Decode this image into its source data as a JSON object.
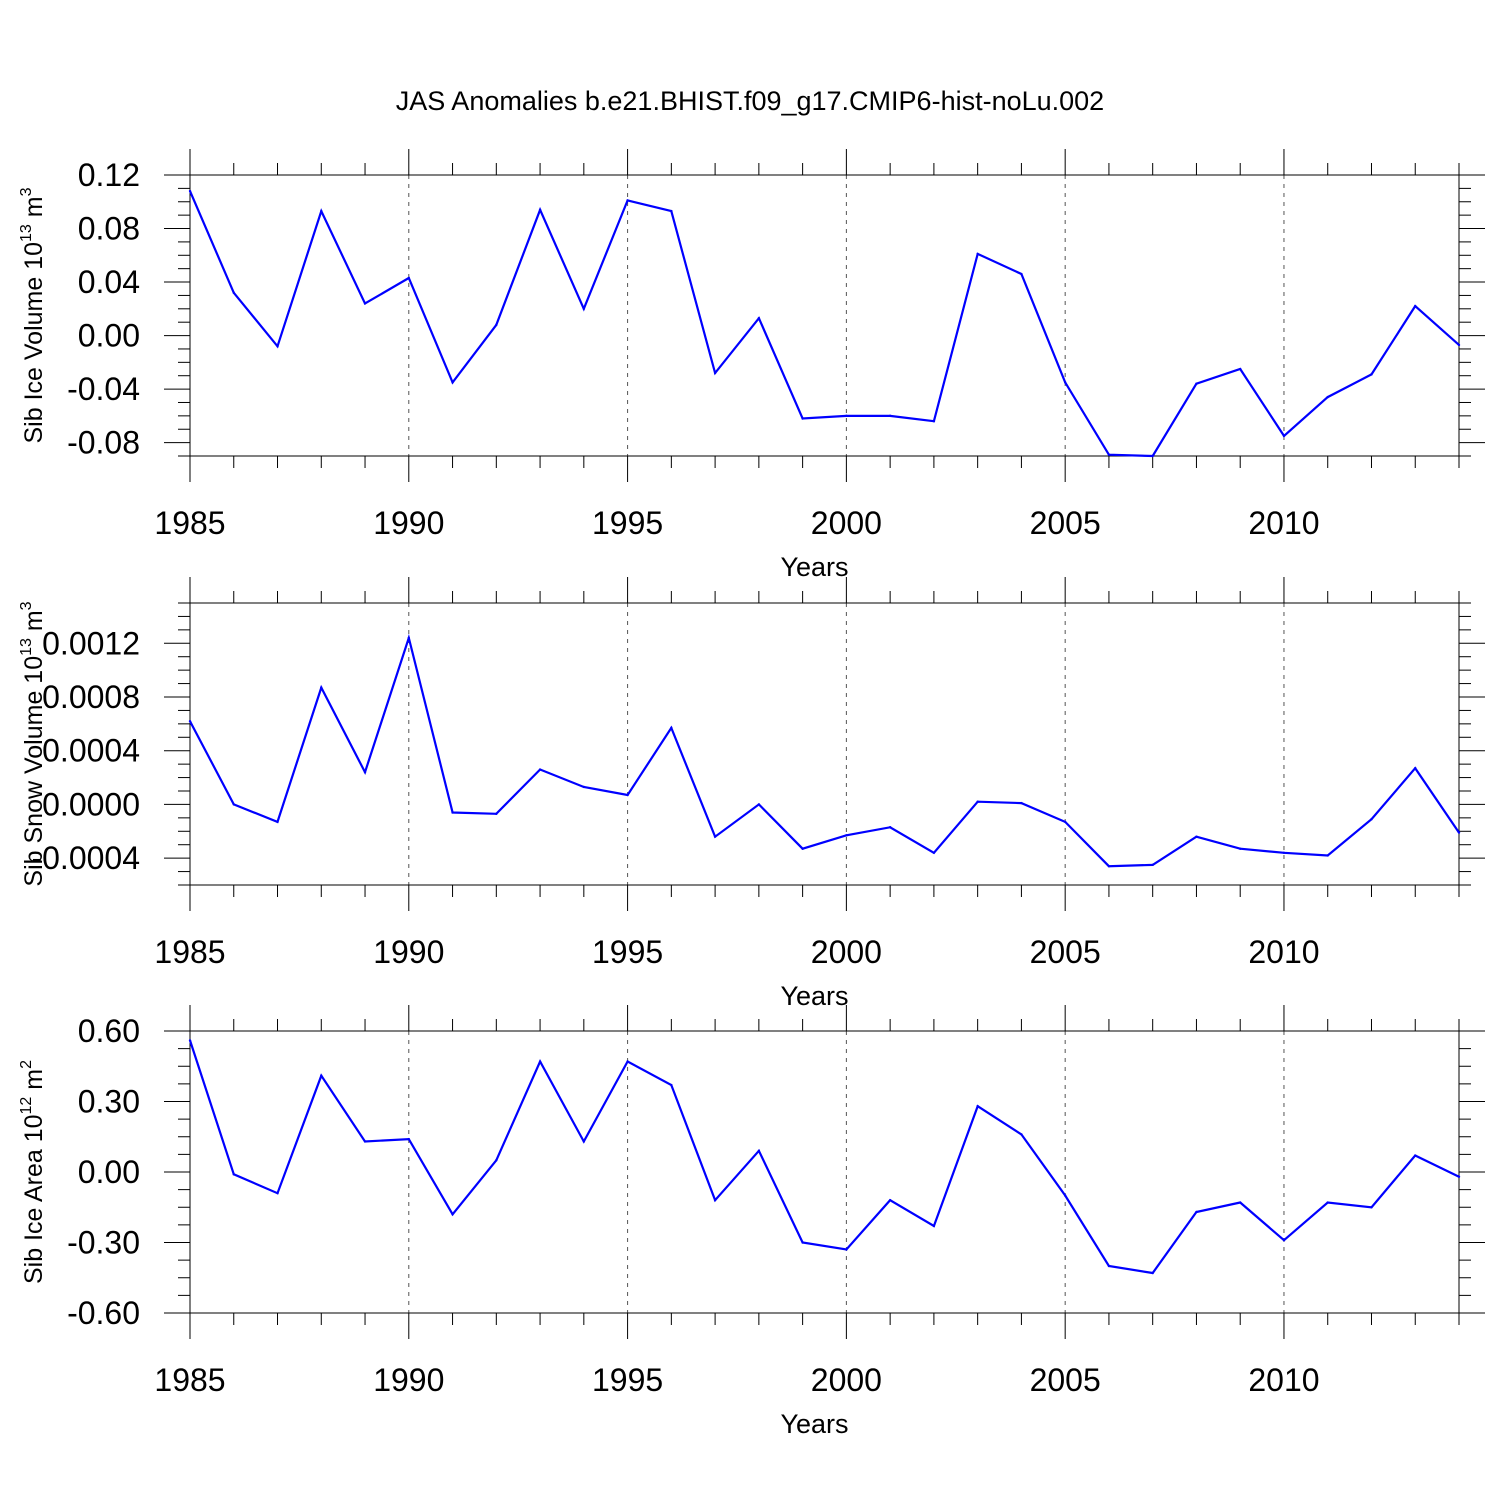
{
  "chart_data": [
    {
      "type": "line",
      "title": "JAS Anomalies b.e21.BHIST.f09_g17.CMIP6-hist-noLu.002",
      "xlabel": "Years",
      "ylabel": {
        "prefix": "Sib Ice Volume 10",
        "exp": "13",
        "unit": " m",
        "unit_exp": "3"
      },
      "xlim": [
        1985,
        2014
      ],
      "ylim": [
        -0.09,
        0.12
      ],
      "x_ticks": [
        1985,
        1990,
        1995,
        2000,
        2005,
        2010
      ],
      "x_tick_labels": [
        "1985",
        "1990",
        "1995",
        "2000",
        "2005",
        "2010"
      ],
      "y_ticks": [
        0.12,
        0.08,
        0.04,
        0.0,
        -0.04,
        -0.08
      ],
      "y_tick_labels": [
        "0.12",
        "0.08",
        "0.04",
        "0.00",
        "-0.04",
        "-0.08"
      ],
      "x_gridlines": [
        1990,
        1995,
        2000,
        2005,
        2010
      ],
      "line_color": "#0000ff",
      "x": [
        1985,
        1986,
        1987,
        1988,
        1989,
        1990,
        1991,
        1992,
        1993,
        1994,
        1995,
        1996,
        1997,
        1998,
        1999,
        2000,
        2001,
        2002,
        2003,
        2004,
        2005,
        2006,
        2007,
        2008,
        2009,
        2010,
        2011,
        2012,
        2013,
        2014
      ],
      "values": [
        0.108,
        0.032,
        -0.008,
        0.093,
        0.024,
        0.043,
        -0.035,
        0.008,
        0.094,
        0.02,
        0.101,
        0.093,
        -0.028,
        0.013,
        -0.062,
        -0.06,
        -0.06,
        -0.064,
        0.061,
        0.046,
        -0.035,
        -0.089,
        -0.09,
        -0.036,
        -0.025,
        -0.075,
        -0.046,
        -0.029,
        0.022,
        -0.007
      ]
    },
    {
      "type": "line",
      "title": "",
      "xlabel": "Years",
      "ylabel": {
        "prefix": "Sib Snow Volume 10",
        "exp": "13",
        "unit": " m",
        "unit_exp": "3"
      },
      "xlim": [
        1985,
        2014
      ],
      "ylim": [
        -0.0006,
        0.0015
      ],
      "x_ticks": [
        1985,
        1990,
        1995,
        2000,
        2005,
        2010
      ],
      "x_tick_labels": [
        "1985",
        "1990",
        "1995",
        "2000",
        "2005",
        "2010"
      ],
      "y_ticks": [
        0.0012,
        0.0008,
        0.0004,
        0.0,
        -0.0004
      ],
      "y_tick_labels": [
        "0.0012",
        "0.0008",
        "0.0004",
        "0.0000",
        "-0.0004"
      ],
      "x_gridlines": [
        1990,
        1995,
        2000,
        2005,
        2010
      ],
      "line_color": "#0000ff",
      "x": [
        1985,
        1986,
        1987,
        1988,
        1989,
        1990,
        1991,
        1992,
        1993,
        1994,
        1995,
        1996,
        1997,
        1998,
        1999,
        2000,
        2001,
        2002,
        2003,
        2004,
        2005,
        2006,
        2007,
        2008,
        2009,
        2010,
        2011,
        2012,
        2013,
        2014
      ],
      "values": [
        0.00062,
        0.0,
        -0.00013,
        0.00087,
        0.00024,
        0.00124,
        -6e-05,
        -7e-05,
        0.00026,
        0.00013,
        7e-05,
        0.00057,
        -0.00024,
        0.0,
        -0.00033,
        -0.00023,
        -0.00017,
        -0.00036,
        2e-05,
        1e-05,
        -0.00013,
        -0.00046,
        -0.00045,
        -0.00024,
        -0.00033,
        -0.00036,
        -0.00038,
        -0.00011,
        0.00027,
        -0.00021
      ]
    },
    {
      "type": "line",
      "title": "",
      "xlabel": "Years",
      "ylabel": {
        "prefix": "Sib Ice Area 10",
        "exp": "12",
        "unit": " m",
        "unit_exp": "2"
      },
      "xlim": [
        1985,
        2014
      ],
      "ylim": [
        -0.6,
        0.6
      ],
      "x_ticks": [
        1985,
        1990,
        1995,
        2000,
        2005,
        2010
      ],
      "x_tick_labels": [
        "1985",
        "1990",
        "1995",
        "2000",
        "2005",
        "2010"
      ],
      "y_ticks": [
        0.6,
        0.3,
        0.0,
        -0.3,
        -0.6
      ],
      "y_tick_labels": [
        "0.60",
        "0.30",
        "0.00",
        "-0.30",
        "-0.60"
      ],
      "x_gridlines": [
        1990,
        1995,
        2000,
        2005,
        2010
      ],
      "line_color": "#0000ff",
      "x": [
        1985,
        1986,
        1987,
        1988,
        1989,
        1990,
        1991,
        1992,
        1993,
        1994,
        1995,
        1996,
        1997,
        1998,
        1999,
        2000,
        2001,
        2002,
        2003,
        2004,
        2005,
        2006,
        2007,
        2008,
        2009,
        2010,
        2011,
        2012,
        2013,
        2014
      ],
      "values": [
        0.56,
        -0.01,
        -0.09,
        0.41,
        0.13,
        0.14,
        -0.18,
        0.05,
        0.47,
        0.13,
        0.47,
        0.37,
        -0.12,
        0.09,
        -0.3,
        -0.33,
        -0.12,
        -0.23,
        0.28,
        0.16,
        -0.1,
        -0.4,
        -0.43,
        -0.17,
        -0.13,
        -0.29,
        -0.13,
        -0.15,
        0.07,
        -0.02
      ]
    }
  ]
}
